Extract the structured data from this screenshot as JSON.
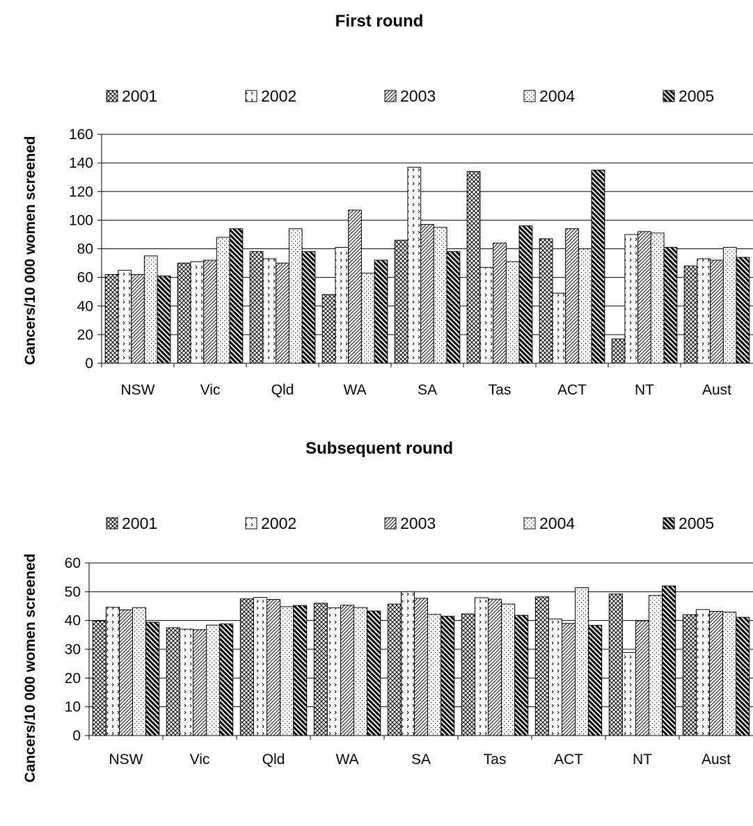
{
  "chart_data": [
    {
      "type": "bar",
      "title": "First round",
      "xlabel": "",
      "ylabel": "Cancers/10 000 women screened",
      "ylim": [
        0,
        160
      ],
      "yticks": [
        0,
        20,
        40,
        60,
        80,
        100,
        120,
        140,
        160
      ],
      "grid": true,
      "legend_position": "top",
      "categories": [
        "NSW",
        "Vic",
        "Qld",
        "WA",
        "SA",
        "Tas",
        "ACT",
        "NT",
        "Aust"
      ],
      "series": [
        {
          "name": "2001",
          "pattern": "crosshatch",
          "values": [
            62,
            70,
            78,
            48,
            86,
            134,
            87,
            17,
            68
          ]
        },
        {
          "name": "2002",
          "pattern": "chevron",
          "values": [
            65,
            71,
            73,
            81,
            137,
            67,
            49,
            90,
            73
          ]
        },
        {
          "name": "2003",
          "pattern": "diagonal",
          "values": [
            62,
            72,
            70,
            107,
            97,
            84,
            94,
            92,
            72
          ]
        },
        {
          "name": "2004",
          "pattern": "dots",
          "values": [
            75,
            88,
            94,
            63,
            95,
            71,
            80,
            91,
            81
          ]
        },
        {
          "name": "2005",
          "pattern": "heavy-diagonal",
          "values": [
            61,
            94,
            78,
            72,
            78,
            96,
            135,
            81,
            74
          ]
        }
      ]
    },
    {
      "type": "bar",
      "title": "Subsequent round",
      "xlabel": "",
      "ylabel": "Cancers/10 000 women screened",
      "ylim": [
        0,
        60
      ],
      "yticks": [
        0,
        10,
        20,
        30,
        40,
        50,
        60
      ],
      "grid": true,
      "legend_position": "top",
      "categories": [
        "NSW",
        "Vic",
        "Qld",
        "WA",
        "SA",
        "Tas",
        "ACT",
        "NT",
        "Aust"
      ],
      "series": [
        {
          "name": "2001",
          "pattern": "crosshatch",
          "values": [
            39.8,
            37.5,
            47.5,
            46.0,
            45.7,
            42.3,
            48.2,
            49.2,
            42.0
          ]
        },
        {
          "name": "2002",
          "pattern": "chevron",
          "values": [
            44.6,
            37.0,
            48.0,
            44.4,
            50.0,
            47.9,
            40.5,
            28.9,
            43.8
          ]
        },
        {
          "name": "2003",
          "pattern": "diagonal",
          "values": [
            43.7,
            36.8,
            47.3,
            45.3,
            47.7,
            47.4,
            39.0,
            39.9,
            43.2
          ]
        },
        {
          "name": "2004",
          "pattern": "dots",
          "values": [
            44.5,
            38.4,
            44.8,
            44.5,
            42.1,
            45.7,
            51.4,
            48.7,
            42.9
          ]
        },
        {
          "name": "2005",
          "pattern": "heavy-diagonal",
          "values": [
            39.4,
            38.8,
            45.2,
            43.3,
            41.5,
            41.8,
            38.3,
            52.0,
            41.1
          ]
        }
      ]
    }
  ]
}
